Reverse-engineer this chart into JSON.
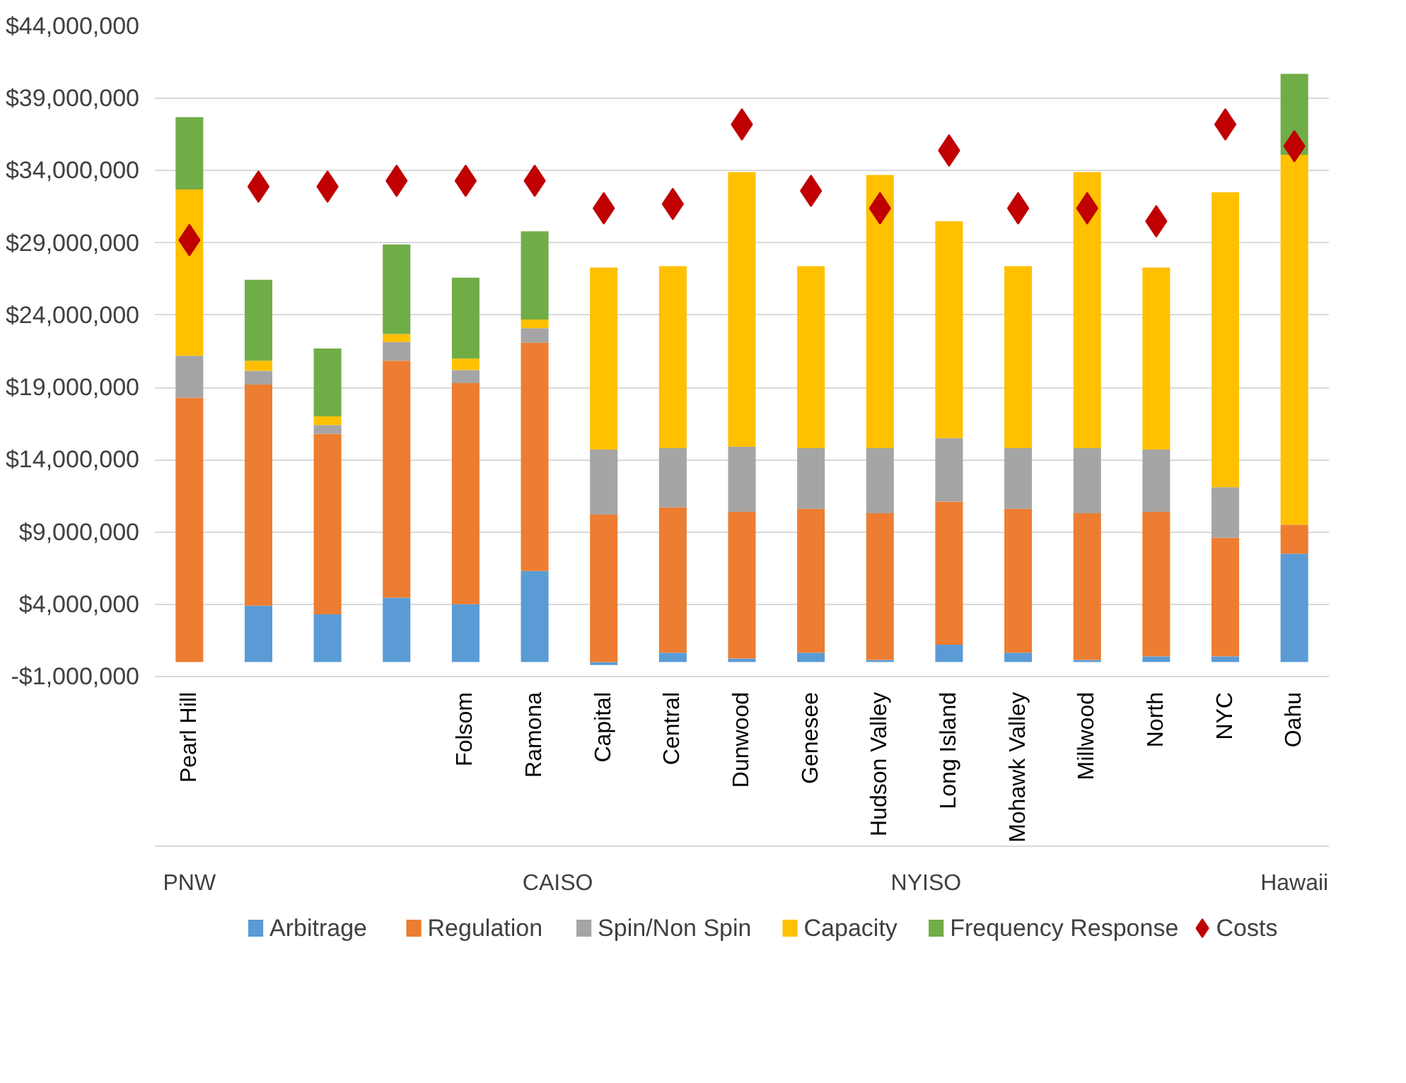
{
  "chart_data": {
    "type": "bar",
    "stacked": true,
    "categories": [
      "Pearl Hill",
      null,
      null,
      null,
      "Folsom",
      "Ramona",
      "Capital",
      "Central",
      "Dunwood",
      "Genesee",
      "Hudson Valley",
      "Long Island",
      "Mohawk Valley",
      "Millwood",
      "North",
      "NYC",
      "Oahu"
    ],
    "series": [
      {
        "name": "Arbitrage",
        "color": "#5b9bd5",
        "values": [
          0,
          3900000,
          3300000,
          4450000,
          4000000,
          6300000,
          -200000,
          650000,
          250000,
          650000,
          150000,
          1200000,
          650000,
          150000,
          400000,
          400000,
          7500000
        ]
      },
      {
        "name": "Regulation",
        "color": "#ed7d31",
        "values": [
          18300000,
          15300000,
          12500000,
          16400000,
          15300000,
          15800000,
          10200000,
          10050000,
          10150000,
          9950000,
          10150000,
          9900000,
          9950000,
          10150000,
          10000000,
          8200000,
          2000000
        ]
      },
      {
        "name": "Spin/Non Spin",
        "color": "#a5a5a5",
        "values": [
          2900000,
          950000,
          600000,
          1300000,
          900000,
          1000000,
          4500000,
          4100000,
          4500000,
          4200000,
          4500000,
          4400000,
          4200000,
          4500000,
          4300000,
          3500000,
          0
        ]
      },
      {
        "name": "Capacity",
        "color": "#ffc000",
        "values": [
          11500000,
          700000,
          600000,
          550000,
          800000,
          600000,
          12600000,
          12600000,
          19000000,
          12600000,
          18900000,
          15000000,
          12600000,
          19100000,
          12600000,
          20400000,
          25600000
        ]
      },
      {
        "name": "Frequency Response",
        "color": "#70ad47",
        "values": [
          5000000,
          5600000,
          4700000,
          6200000,
          5600000,
          6100000,
          0,
          0,
          0,
          0,
          0,
          0,
          0,
          0,
          0,
          0,
          5600000
        ]
      },
      {
        "name": "Costs",
        "type": "scatter",
        "marker": "diamond",
        "color": "#c00000",
        "values": [
          29200000,
          32900000,
          32900000,
          33300000,
          33300000,
          33300000,
          31400000,
          31700000,
          37200000,
          32600000,
          31400000,
          35400000,
          31400000,
          31400000,
          30500000,
          37200000,
          35700000
        ]
      }
    ],
    "ylim": [
      -1000000,
      44000000
    ],
    "yticks": [
      {
        "value": -1000000,
        "label": "-$1,000,000"
      },
      {
        "value": 4000000,
        "label": "$4,000,000"
      },
      {
        "value": 9000000,
        "label": "$9,000,000"
      },
      {
        "value": 14000000,
        "label": "$14,000,000"
      },
      {
        "value": 19000000,
        "label": "$19,000,000"
      },
      {
        "value": 24000000,
        "label": "$24,000,000"
      },
      {
        "value": 29000000,
        "label": "$29,000,000"
      },
      {
        "value": 34000000,
        "label": "$34,000,000"
      },
      {
        "value": 39000000,
        "label": "$39,000,000"
      },
      {
        "value": 44000000,
        "label": "$44,000,000"
      }
    ],
    "annotations": [
      "PNW",
      "CAISO",
      "NYISO",
      "Hawaii"
    ],
    "grid": "y",
    "legend": "bottom"
  }
}
